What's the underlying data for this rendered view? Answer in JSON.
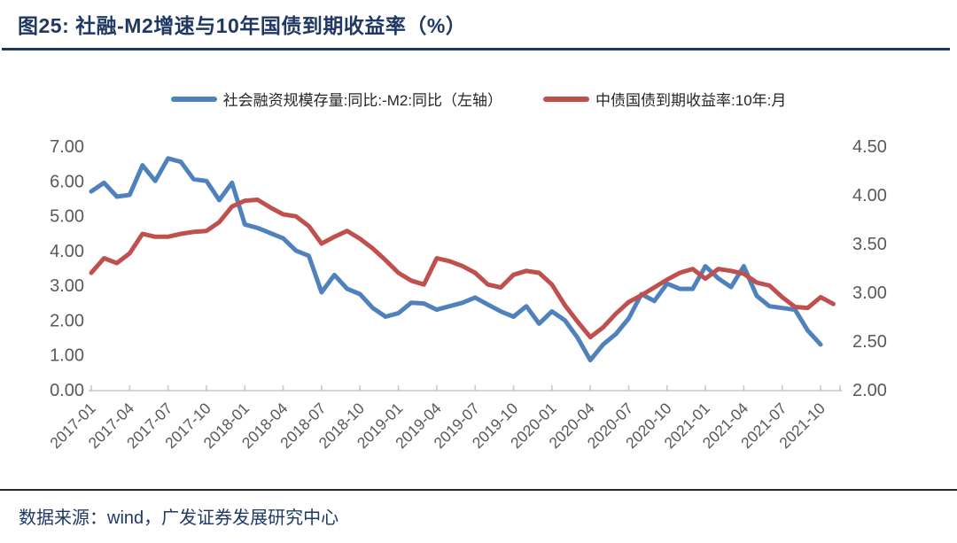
{
  "page": {
    "title": "图25: 社融-M2增速与10年国债到期收益率（%）",
    "source_note": "数据来源：wind，广发证券发展研究中心"
  },
  "colors": {
    "series_blue": "#4F81BD",
    "series_red": "#C0504D",
    "title_navy": "#1F3864",
    "axis_text_gray": "#595959",
    "axis_line_gray": "#C9C9C9"
  },
  "legend": [
    {
      "label": "社会融资规模存量:同比:-M2:同比（左轴）",
      "color": "#4F81BD"
    },
    {
      "label": "中债国债到期收益率:10年:月",
      "color": "#C0504D"
    }
  ],
  "chart_data": {
    "type": "line",
    "title": "图25: 社融-M2增速与10年国债到期收益率（%）",
    "x": [
      "2017-01",
      "2017-02",
      "2017-03",
      "2017-04",
      "2017-05",
      "2017-06",
      "2017-07",
      "2017-08",
      "2017-09",
      "2017-10",
      "2017-11",
      "2017-12",
      "2018-01",
      "2018-02",
      "2018-03",
      "2018-04",
      "2018-05",
      "2018-06",
      "2018-07",
      "2018-08",
      "2018-09",
      "2018-10",
      "2018-11",
      "2018-12",
      "2019-01",
      "2019-02",
      "2019-03",
      "2019-04",
      "2019-05",
      "2019-06",
      "2019-07",
      "2019-08",
      "2019-09",
      "2019-10",
      "2019-11",
      "2019-12",
      "2020-01",
      "2020-02",
      "2020-03",
      "2020-04",
      "2020-05",
      "2020-06",
      "2020-07",
      "2020-08",
      "2020-09",
      "2020-10",
      "2020-11",
      "2020-12",
      "2021-01",
      "2021-02",
      "2021-03",
      "2021-04",
      "2021-05",
      "2021-06",
      "2021-07",
      "2021-08",
      "2021-09",
      "2021-10",
      "2021-11"
    ],
    "x_tick_labels": [
      "2017-01",
      "2017-04",
      "2017-07",
      "2017-10",
      "2018-01",
      "2018-04",
      "2018-07",
      "2018-10",
      "2019-01",
      "2019-04",
      "2019-07",
      "2019-10",
      "2020-01",
      "2020-04",
      "2020-07",
      "2020-10",
      "2021-01",
      "2021-04",
      "2021-07",
      "2021-10"
    ],
    "series": [
      {
        "name": "社会融资规模存量:同比:-M2:同比（左轴）",
        "axis": "left",
        "color": "#4F81BD",
        "values": [
          5.7,
          5.95,
          5.55,
          5.6,
          6.45,
          6.0,
          6.65,
          6.55,
          6.05,
          6.0,
          5.45,
          5.95,
          4.75,
          4.65,
          4.5,
          4.35,
          4.0,
          3.85,
          2.8,
          3.3,
          2.9,
          2.75,
          2.35,
          2.1,
          2.2,
          2.5,
          2.48,
          2.3,
          2.4,
          2.5,
          2.65,
          2.45,
          2.25,
          2.1,
          2.4,
          1.9,
          2.25,
          2.0,
          1.5,
          0.85,
          1.3,
          1.6,
          2.05,
          2.75,
          2.55,
          3.05,
          2.9,
          2.9,
          3.55,
          3.2,
          2.95,
          3.55,
          2.7,
          2.4,
          2.35,
          2.3,
          1.7,
          1.3,
          null
        ]
      },
      {
        "name": "中债国债到期收益率:10年:月",
        "axis": "right",
        "color": "#C0504D",
        "values": [
          3.2,
          3.35,
          3.3,
          3.4,
          3.6,
          3.57,
          3.57,
          3.6,
          3.62,
          3.63,
          3.72,
          3.88,
          3.94,
          3.95,
          3.87,
          3.8,
          3.78,
          3.68,
          3.5,
          3.57,
          3.63,
          3.55,
          3.45,
          3.33,
          3.2,
          3.12,
          3.08,
          3.35,
          3.32,
          3.27,
          3.2,
          3.08,
          3.05,
          3.18,
          3.22,
          3.2,
          3.08,
          2.87,
          2.7,
          2.54,
          2.64,
          2.78,
          2.9,
          2.97,
          3.05,
          3.13,
          3.2,
          3.24,
          3.14,
          3.24,
          3.22,
          3.19,
          3.1,
          3.07,
          2.95,
          2.85,
          2.84,
          2.95,
          2.88
        ]
      }
    ],
    "left_axis": {
      "min": 0,
      "max": 7,
      "ticks": [
        "7.00",
        "6.00",
        "5.00",
        "4.00",
        "3.00",
        "2.00",
        "1.00",
        "0.00"
      ]
    },
    "right_axis": {
      "min": 2,
      "max": 4.5,
      "ticks": [
        "4.50",
        "4.00",
        "3.50",
        "3.00",
        "2.50",
        "2.00"
      ]
    },
    "grid": false,
    "legend_position": "top"
  }
}
